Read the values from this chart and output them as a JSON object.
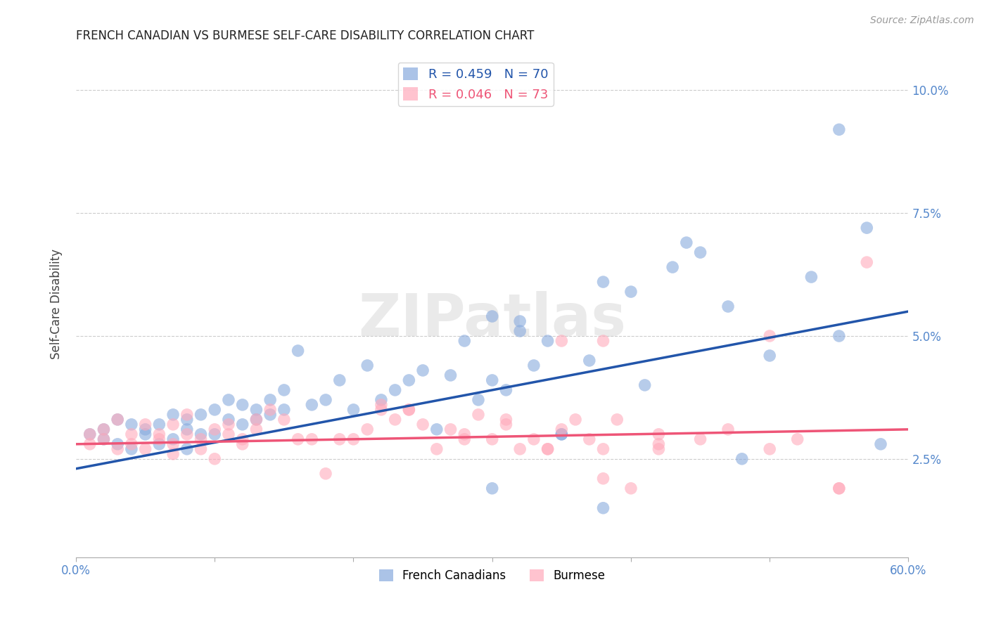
{
  "title": "FRENCH CANADIAN VS BURMESE SELF-CARE DISABILITY CORRELATION CHART",
  "source": "Source: ZipAtlas.com",
  "ylabel": "Self-Care Disability",
  "xlim": [
    0.0,
    0.6
  ],
  "ylim": [
    0.005,
    0.108
  ],
  "yticks": [
    0.025,
    0.05,
    0.075,
    0.1
  ],
  "ytick_labels": [
    "2.5%",
    "5.0%",
    "7.5%",
    "10.0%"
  ],
  "xticks": [
    0.0,
    0.1,
    0.2,
    0.3,
    0.4,
    0.5,
    0.6
  ],
  "xtick_labels_show": [
    "0.0%",
    "",
    "",
    "",
    "",
    "",
    "60.0%"
  ],
  "legend_labels": [
    "French Canadians",
    "Burmese"
  ],
  "R_blue": 0.459,
  "N_blue": 70,
  "R_pink": 0.046,
  "N_pink": 73,
  "blue_color": "#88aadd",
  "pink_color": "#ffaabb",
  "blue_line_color": "#2255aa",
  "pink_line_color": "#ee5577",
  "grid_color": "#cccccc",
  "title_color": "#222222",
  "axis_label_color": "#444444",
  "tick_color": "#5588cc",
  "background_color": "#ffffff",
  "blue_line_x0": 0.0,
  "blue_line_y0": 0.023,
  "blue_line_x1": 0.6,
  "blue_line_y1": 0.055,
  "pink_line_x0": 0.0,
  "pink_line_y0": 0.028,
  "pink_line_x1": 0.6,
  "pink_line_y1": 0.031,
  "blue_scatter_x": [
    0.01,
    0.02,
    0.02,
    0.03,
    0.03,
    0.04,
    0.04,
    0.05,
    0.05,
    0.06,
    0.06,
    0.07,
    0.07,
    0.08,
    0.08,
    0.08,
    0.09,
    0.09,
    0.1,
    0.1,
    0.11,
    0.11,
    0.12,
    0.12,
    0.13,
    0.13,
    0.14,
    0.14,
    0.15,
    0.15,
    0.16,
    0.17,
    0.18,
    0.19,
    0.2,
    0.21,
    0.22,
    0.23,
    0.24,
    0.25,
    0.26,
    0.27,
    0.28,
    0.29,
    0.3,
    0.31,
    0.32,
    0.33,
    0.34,
    0.35,
    0.37,
    0.38,
    0.4,
    0.41,
    0.43,
    0.44,
    0.45,
    0.47,
    0.3,
    0.32,
    0.35,
    0.5,
    0.53,
    0.55,
    0.57,
    0.3,
    0.38,
    0.48,
    0.58,
    0.55
  ],
  "blue_scatter_y": [
    0.03,
    0.029,
    0.031,
    0.028,
    0.033,
    0.032,
    0.027,
    0.031,
    0.03,
    0.032,
    0.028,
    0.029,
    0.034,
    0.031,
    0.033,
    0.027,
    0.034,
    0.03,
    0.035,
    0.03,
    0.037,
    0.033,
    0.032,
    0.036,
    0.035,
    0.033,
    0.034,
    0.037,
    0.039,
    0.035,
    0.047,
    0.036,
    0.037,
    0.041,
    0.035,
    0.044,
    0.037,
    0.039,
    0.041,
    0.043,
    0.031,
    0.042,
    0.049,
    0.037,
    0.054,
    0.039,
    0.051,
    0.044,
    0.049,
    0.03,
    0.045,
    0.061,
    0.059,
    0.04,
    0.064,
    0.069,
    0.067,
    0.056,
    0.041,
    0.053,
    0.03,
    0.046,
    0.062,
    0.05,
    0.072,
    0.019,
    0.015,
    0.025,
    0.028,
    0.092
  ],
  "pink_scatter_x": [
    0.01,
    0.01,
    0.02,
    0.02,
    0.03,
    0.03,
    0.04,
    0.04,
    0.05,
    0.05,
    0.06,
    0.06,
    0.07,
    0.07,
    0.07,
    0.08,
    0.08,
    0.09,
    0.09,
    0.1,
    0.1,
    0.11,
    0.11,
    0.12,
    0.12,
    0.13,
    0.13,
    0.14,
    0.15,
    0.16,
    0.17,
    0.18,
    0.19,
    0.2,
    0.21,
    0.22,
    0.23,
    0.24,
    0.25,
    0.26,
    0.27,
    0.28,
    0.29,
    0.3,
    0.31,
    0.32,
    0.33,
    0.34,
    0.35,
    0.36,
    0.37,
    0.38,
    0.39,
    0.4,
    0.42,
    0.22,
    0.24,
    0.28,
    0.31,
    0.34,
    0.38,
    0.42,
    0.45,
    0.47,
    0.5,
    0.5,
    0.52,
    0.55,
    0.55,
    0.57,
    0.35,
    0.38,
    0.42
  ],
  "pink_scatter_y": [
    0.03,
    0.028,
    0.031,
    0.029,
    0.027,
    0.033,
    0.028,
    0.03,
    0.032,
    0.027,
    0.03,
    0.029,
    0.028,
    0.032,
    0.026,
    0.03,
    0.034,
    0.029,
    0.027,
    0.031,
    0.025,
    0.03,
    0.032,
    0.029,
    0.028,
    0.031,
    0.033,
    0.035,
    0.033,
    0.029,
    0.029,
    0.022,
    0.029,
    0.029,
    0.031,
    0.035,
    0.033,
    0.035,
    0.032,
    0.027,
    0.031,
    0.029,
    0.034,
    0.029,
    0.033,
    0.027,
    0.029,
    0.027,
    0.031,
    0.033,
    0.029,
    0.027,
    0.033,
    0.019,
    0.027,
    0.036,
    0.035,
    0.03,
    0.032,
    0.027,
    0.049,
    0.028,
    0.029,
    0.031,
    0.027,
    0.05,
    0.029,
    0.019,
    0.019,
    0.065,
    0.049,
    0.021,
    0.03
  ]
}
